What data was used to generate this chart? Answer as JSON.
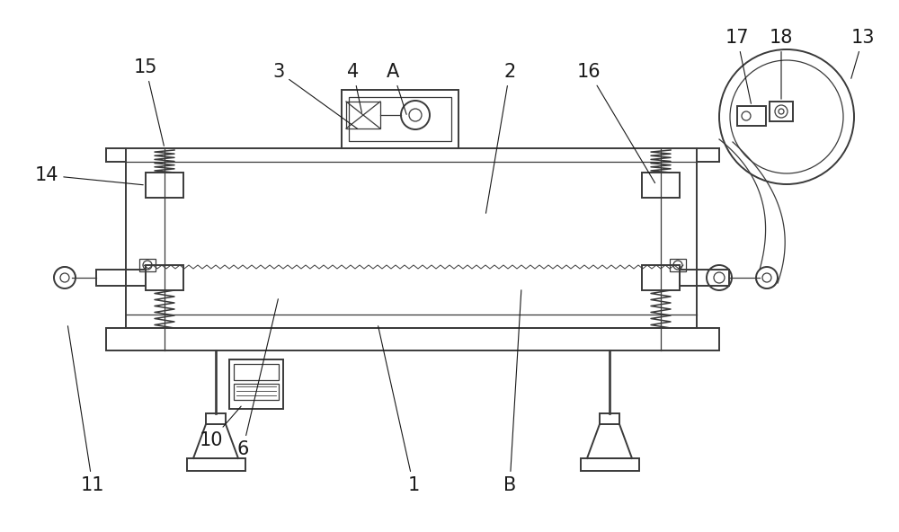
{
  "bg_color": "#ffffff",
  "line_color": "#3a3a3a",
  "lw_main": 1.4,
  "lw_thin": 0.9,
  "lw_ann": 0.8,
  "font_size": 15,
  "ann_color": "#1a1a1a"
}
